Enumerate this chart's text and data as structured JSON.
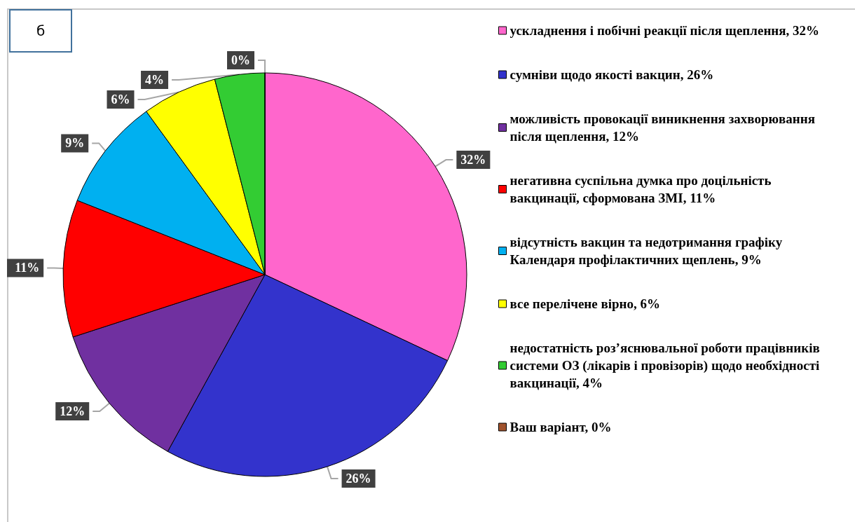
{
  "chart_data": {
    "type": "pie",
    "title": "б",
    "categories": [
      "ускладнення і побічні реакції після щеплення, 32%",
      "сумніви щодо якості вакцин, 26%",
      "можливість провокації виникнення захворювання після щеплення, 12%",
      "негативна суспільна думка про доцільність вакцинації, сформована ЗМІ, 11%",
      "відсутність вакцин та недотримання графіку Календаря профілактичних щеплень, 9%",
      "все перелічене вірно, 6%",
      "недостатність роз’яснювальної роботи працівників  системи ОЗ (лікарів і провізорів) щодо необхідності вакцинації, 4%",
      "Ваш варіант, 0%"
    ],
    "values": [
      32,
      26,
      12,
      11,
      9,
      6,
      4,
      0
    ],
    "colors": [
      "#ff66cc",
      "#3333cc",
      "#7030a0",
      "#ff0000",
      "#00b0f0",
      "#ffff00",
      "#33cc33",
      "#a0522d"
    ],
    "value_labels": [
      "32%",
      "26%",
      "12%",
      "11%",
      "9%",
      "6%",
      "4%",
      "0%"
    ],
    "legend": "right"
  }
}
